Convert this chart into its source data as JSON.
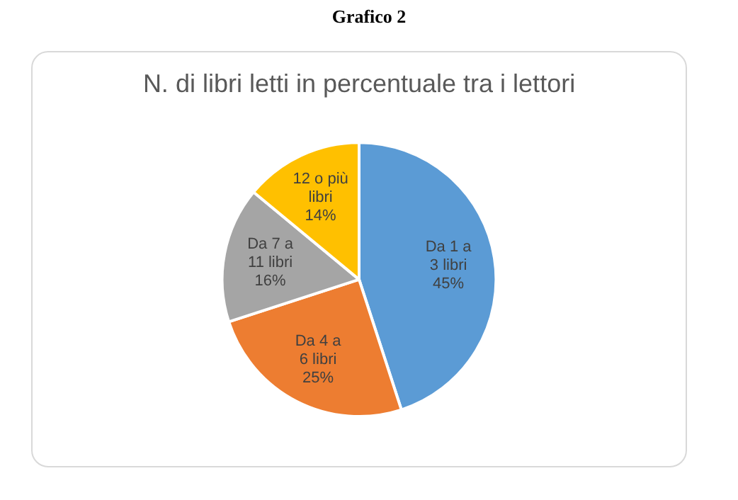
{
  "chart_data": {
    "type": "pie",
    "title": "Grafico 2",
    "subtitle": "N. di libri letti in percentuale tra i lettori",
    "categories": [
      "Da 1 a 3 libri",
      "Da 4 a 6 libri",
      "Da 7 a 11 libri",
      "12 o più libri"
    ],
    "values": [
      45,
      25,
      16,
      14
    ],
    "colors": [
      "#5b9bd5",
      "#ed7d31",
      "#a5a5a5",
      "#ffc000"
    ],
    "value_labels": [
      "45%",
      "25%",
      "16%",
      "14%"
    ],
    "legend": false
  }
}
